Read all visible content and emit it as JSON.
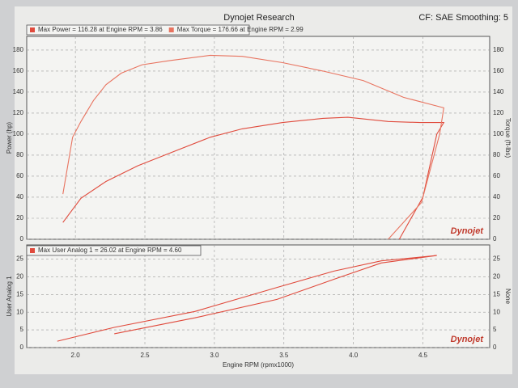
{
  "chart_data": [
    {
      "type": "line",
      "title": "Dynojet Research",
      "annotation": "CF: SAE Smoothing: 5",
      "ylabel": "Power (hp)",
      "y2label": "Torque (ft-lbs)",
      "watermark": "Dynojet",
      "xlim": [
        1.65,
        4.98
      ],
      "xticks": [
        2,
        2.5,
        3,
        3.5,
        4,
        4.5
      ],
      "ylim": [
        0,
        193
      ],
      "yticks": [
        0,
        20,
        40,
        60,
        80,
        100,
        120,
        140,
        160,
        180
      ],
      "y2lim": [
        0,
        193
      ],
      "y2ticks": [
        0,
        20,
        40,
        60,
        80,
        100,
        120,
        140,
        160,
        180
      ],
      "grid": true,
      "series": [
        {
          "name": "Max Power = 116.28 at Engine RPM = 3.86",
          "color": "#e04a3c",
          "x": [
            1.91,
            2.04,
            2.22,
            2.45,
            2.68,
            2.97,
            3.2,
            3.49,
            3.78,
            3.96,
            4.25,
            4.48,
            4.65,
            4.6,
            4.5,
            4.33
          ],
          "values": [
            16,
            39,
            55,
            70,
            82,
            97,
            105,
            111,
            115,
            116,
            112,
            111,
            111,
            100,
            40,
            0
          ]
        },
        {
          "name": "Max Torque = 176.66 at Engine RPM = 2.99",
          "color": "#e8735f",
          "axis": "y2",
          "x": [
            1.91,
            1.98,
            2.04,
            2.13,
            2.22,
            2.33,
            2.48,
            2.68,
            2.97,
            3.2,
            3.49,
            3.78,
            4.07,
            4.36,
            4.65,
            4.62,
            4.49,
            4.25
          ],
          "values": [
            43,
            97,
            112,
            132,
            147,
            158,
            166,
            170,
            175,
            174,
            168,
            160,
            151,
            135,
            125,
            100,
            35,
            0
          ]
        }
      ]
    },
    {
      "type": "line",
      "xlabel": "Engine RPM (rpmx1000)",
      "ylabel": "User Analog 1",
      "y2label": "None",
      "watermark": "Dynojet",
      "xlim": [
        1.65,
        4.98
      ],
      "xticks": [
        {
          "value": 2,
          "label": "2.0"
        },
        2.5,
        {
          "value": 3,
          "label": "3.0"
        },
        3.5,
        {
          "value": 4,
          "label": "4.0"
        },
        4.5
      ],
      "ylim": [
        0,
        29
      ],
      "yticks": [
        0,
        5,
        10,
        15,
        20,
        25
      ],
      "y2lim": [
        0,
        29
      ],
      "y2ticks": [
        0,
        5,
        10,
        15,
        20,
        25
      ],
      "grid": true,
      "series": [
        {
          "name": "Max User Analog 1 = 26.02 at Engine RPM = 4.60",
          "color": "#e04a3c",
          "x": [
            1.87,
            2.28,
            2.86,
            3.45,
            3.86,
            4.2,
            4.6,
            4.2,
            3.86,
            3.45,
            2.86,
            2.28
          ],
          "values": [
            1.8,
            5.7,
            10.2,
            17,
            21.6,
            24.5,
            26,
            23.9,
            19.3,
            13.6,
            8.4,
            3.9
          ]
        }
      ]
    }
  ]
}
